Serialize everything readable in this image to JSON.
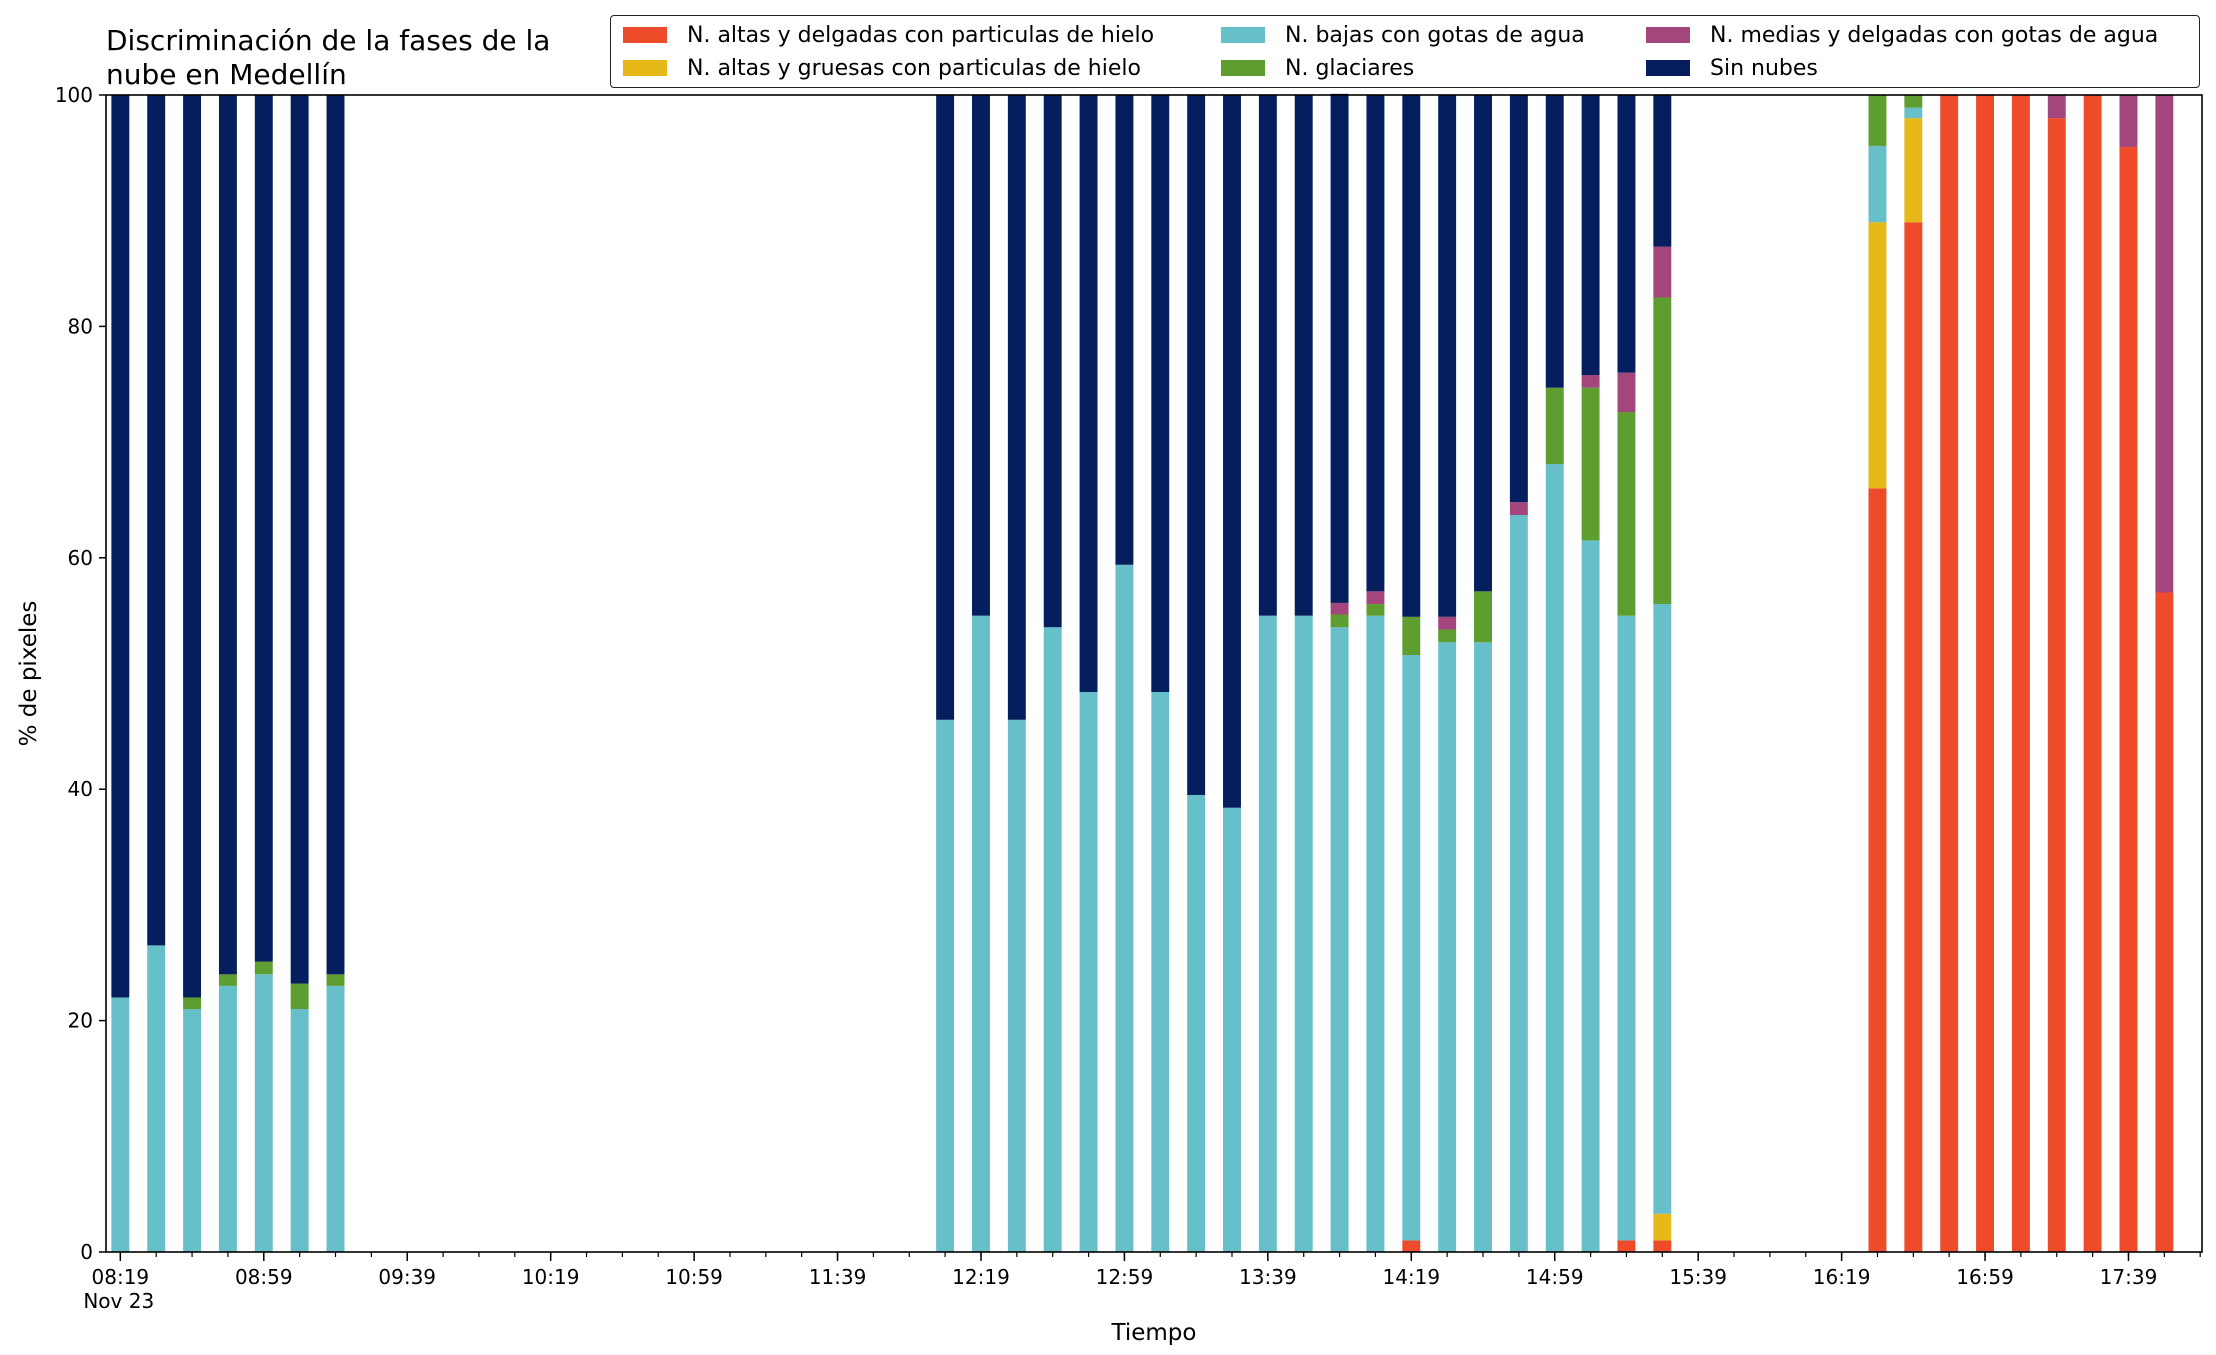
{
  "chart_data": {
    "type": "bar",
    "stacked": true,
    "title": "Discriminación de la fases de la\nnube en Medellín",
    "xlabel": "Tiempo",
    "ylabel": "% de pixeles",
    "ylim": [
      0,
      100
    ],
    "y_ticks": [
      "0",
      "20",
      "40",
      "60",
      "80",
      "100"
    ],
    "x_range": [
      "08:19",
      "17:59"
    ],
    "x_ticks": [
      "08:19",
      "08:59",
      "09:39",
      "10:19",
      "10:59",
      "11:39",
      "12:19",
      "12:59",
      "13:39",
      "14:19",
      "14:59",
      "15:39",
      "16:19",
      "16:59",
      "17:39"
    ],
    "x_date_label": "Nov 23",
    "grid": false,
    "legend_position": "top",
    "x": [
      "08:19",
      "08:29",
      "08:39",
      "08:49",
      "08:59",
      "09:09",
      "09:19",
      "12:09",
      "12:19",
      "12:29",
      "12:39",
      "12:49",
      "12:59",
      "13:09",
      "13:19",
      "13:29",
      "13:39",
      "13:49",
      "13:59",
      "14:09",
      "14:19",
      "14:29",
      "14:39",
      "14:49",
      "14:59",
      "15:09",
      "15:19",
      "15:29",
      "16:29",
      "16:39",
      "16:49",
      "16:59",
      "17:09",
      "17:19",
      "17:29",
      "17:39",
      "17:49"
    ],
    "series": [
      {
        "name": "N. altas y delgadas con particulas de hielo",
        "color": "#ee4b2b",
        "values": [
          0,
          0,
          0,
          0,
          0,
          0,
          0,
          0,
          0,
          0,
          0,
          0,
          0,
          0,
          0,
          0,
          0,
          0,
          0,
          0,
          1,
          0,
          0,
          0,
          0,
          0,
          1,
          1,
          66,
          89,
          100,
          100,
          100,
          98,
          100,
          95.5,
          57
        ]
      },
      {
        "name": "N. altas y gruesas con particulas de hielo",
        "color": "#e6b818",
        "values": [
          0,
          0,
          0,
          0,
          0,
          0,
          0,
          0,
          0,
          0,
          0,
          0,
          0,
          0,
          0,
          0,
          0,
          0,
          0,
          0,
          0,
          0,
          0,
          0,
          0,
          0,
          0,
          2.3,
          23,
          9,
          0,
          0,
          0,
          0,
          0,
          0,
          0
        ]
      },
      {
        "name": "N. bajas con gotas de agua",
        "color": "#67bfc9",
        "values": [
          22,
          26.5,
          21,
          23,
          24,
          21,
          23,
          46,
          55,
          46,
          54,
          48.4,
          59.4,
          48.4,
          39.5,
          38.4,
          55,
          55,
          54,
          55,
          50.6,
          52.7,
          52.7,
          63.7,
          68.1,
          61.5,
          54,
          52.7,
          6.6,
          0.9,
          0,
          0,
          0,
          0,
          0,
          0,
          0
        ]
      },
      {
        "name": "N. glaciares",
        "color": "#5e9d2f",
        "values": [
          0,
          0,
          1,
          1,
          1.1,
          2.2,
          1,
          0,
          0,
          0,
          0,
          0,
          0,
          0,
          0,
          0,
          0,
          0,
          1.1,
          1,
          3.3,
          1.1,
          4.4,
          0,
          6.6,
          13.2,
          17.6,
          26.5,
          4.4,
          1.1,
          0,
          0,
          0,
          0,
          0,
          0,
          0
        ]
      },
      {
        "name": "N. medias y delgadas con gotas de agua",
        "color": "#a3467e",
        "values": [
          0,
          0,
          0,
          0,
          0,
          0,
          0,
          0,
          0,
          0,
          0,
          0,
          0,
          0,
          0,
          0,
          0,
          0,
          1,
          1.1,
          0,
          1.1,
          0,
          1.1,
          0,
          1.1,
          3.4,
          4.4,
          0,
          0,
          0,
          0,
          0,
          2,
          0,
          4.5,
          43
        ]
      },
      {
        "name": "Sin nubes",
        "color": "#041e5e",
        "values": [
          78,
          73.5,
          78,
          76,
          74.9,
          76.8,
          76,
          54,
          45,
          54,
          46,
          51.6,
          40.6,
          51.6,
          60.5,
          61.6,
          45,
          45,
          44,
          42.9,
          45.1,
          45.1,
          42.9,
          35.2,
          25.3,
          24.2,
          24,
          13.1,
          0,
          0,
          0,
          0,
          0,
          0,
          0,
          0,
          0
        ]
      }
    ]
  }
}
